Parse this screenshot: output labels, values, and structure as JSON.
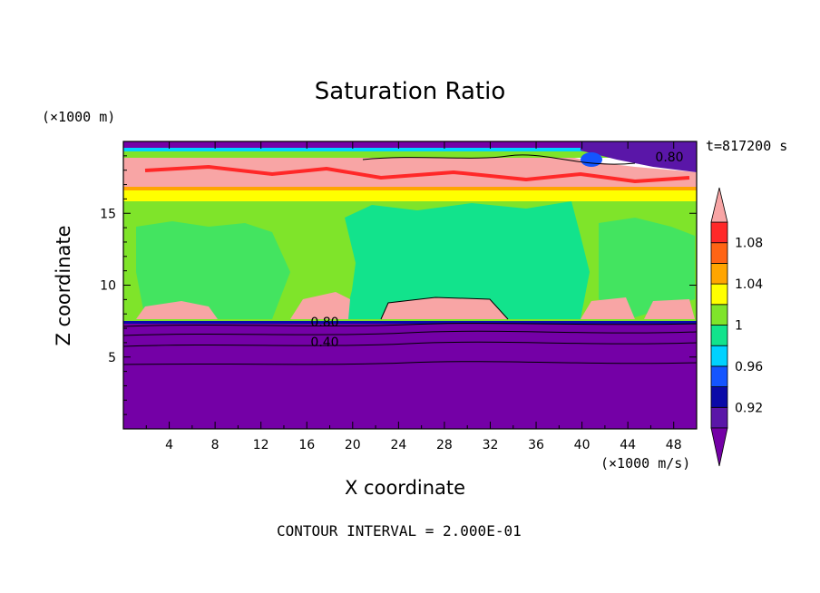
{
  "chart_data": {
    "type": "heatmap",
    "title": "Saturation Ratio",
    "xlabel": "X coordinate",
    "ylabel": "Z coordinate",
    "x_units": "(×1000 m/s)",
    "y_units": "(×1000 m)",
    "time_label": "t=817200 s",
    "contour_interval_label": "CONTOUR INTERVAL = 2.000E-01",
    "xlim": [
      0,
      50
    ],
    "ylim": [
      0,
      20
    ],
    "x_ticks": [
      "4",
      "8",
      "12",
      "16",
      "20",
      "24",
      "28",
      "32",
      "36",
      "40",
      "44",
      "48"
    ],
    "y_ticks": [
      "5",
      "10",
      "15"
    ],
    "contour_labels": [
      "0.80",
      "0.80",
      "0.40"
    ],
    "colorbar": {
      "labels": [
        "1.08",
        "1.04",
        "1",
        "0.96",
        "0.92"
      ],
      "levels": [
        {
          "min": 0.9,
          "max": 0.92,
          "color": "#5a16a8"
        },
        {
          "min": 0.92,
          "max": 0.94,
          "color": "#0a0aa8"
        },
        {
          "min": 0.94,
          "max": 0.96,
          "color": "#1455ff"
        },
        {
          "min": 0.96,
          "max": 0.98,
          "color": "#00d2ff"
        },
        {
          "min": 0.98,
          "max": 1.0,
          "color": "#12e38c"
        },
        {
          "min": 1.0,
          "max": 1.02,
          "color": "#7fe42a"
        },
        {
          "min": 1.02,
          "max": 1.04,
          "color": "#ffff00"
        },
        {
          "min": 1.04,
          "max": 1.06,
          "color": "#ffa500"
        },
        {
          "min": 1.06,
          "max": 1.08,
          "color": "#ff6414"
        },
        {
          "min": 1.08,
          "max": 1.1,
          "color": "#ff2828"
        }
      ],
      "under_color": "#7400a6",
      "over_color": "#f8a5a5"
    }
  }
}
